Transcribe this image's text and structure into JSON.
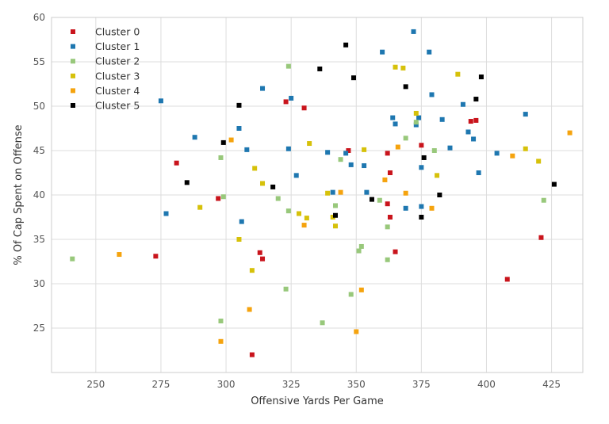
{
  "chart_data": {
    "type": "scatter",
    "xlabel": "Offensive Yards Per Game",
    "ylabel": "% Of Cap Spent on Offense",
    "xlim": [
      233,
      437
    ],
    "ylim": [
      20,
      60
    ],
    "xticks": [
      250,
      275,
      300,
      325,
      350,
      375,
      400,
      425
    ],
    "yticks": [
      25,
      30,
      35,
      40,
      45,
      50,
      55,
      60
    ],
    "grid": true,
    "legend_position": "top-left",
    "series": [
      {
        "name": "Cluster 0",
        "color": "#c9141c",
        "points": [
          [
            281,
            43.6
          ],
          [
            273,
            33.1
          ],
          [
            297,
            39.6
          ],
          [
            310,
            22.0
          ],
          [
            313,
            33.5
          ],
          [
            314,
            32.8
          ],
          [
            323,
            50.5
          ],
          [
            330,
            49.8
          ],
          [
            347,
            45.0
          ],
          [
            362,
            39.0
          ],
          [
            362,
            44.7
          ],
          [
            363,
            42.5
          ],
          [
            363,
            37.5
          ],
          [
            365,
            33.6
          ],
          [
            375,
            45.6
          ],
          [
            394,
            48.3
          ],
          [
            396,
            48.4
          ],
          [
            408,
            30.5
          ],
          [
            421,
            35.2
          ]
        ]
      },
      {
        "name": "Cluster 1",
        "color": "#1e77b0",
        "points": [
          [
            275,
            50.6
          ],
          [
            277,
            37.9
          ],
          [
            288,
            46.5
          ],
          [
            305,
            47.5
          ],
          [
            306,
            37.0
          ],
          [
            308,
            45.1
          ],
          [
            314,
            52.0
          ],
          [
            324,
            45.2
          ],
          [
            325,
            50.9
          ],
          [
            327,
            42.2
          ],
          [
            339,
            44.8
          ],
          [
            341,
            40.3
          ],
          [
            346,
            44.7
          ],
          [
            348,
            43.4
          ],
          [
            353,
            43.3
          ],
          [
            354,
            40.3
          ],
          [
            360,
            56.1
          ],
          [
            364,
            48.7
          ],
          [
            365,
            48.0
          ],
          [
            369,
            38.5
          ],
          [
            372,
            58.4
          ],
          [
            373,
            47.9
          ],
          [
            374,
            48.7
          ],
          [
            375,
            43.1
          ],
          [
            375,
            38.7
          ],
          [
            378,
            56.1
          ],
          [
            379,
            51.3
          ],
          [
            383,
            48.5
          ],
          [
            386,
            45.3
          ],
          [
            391,
            50.2
          ],
          [
            393,
            47.1
          ],
          [
            395,
            46.3
          ],
          [
            397,
            42.5
          ],
          [
            404,
            44.7
          ],
          [
            415,
            49.1
          ]
        ]
      },
      {
        "name": "Cluster 2",
        "color": "#98c87b",
        "points": [
          [
            241,
            32.8
          ],
          [
            298,
            44.2
          ],
          [
            298,
            25.8
          ],
          [
            299,
            39.8
          ],
          [
            320,
            39.6
          ],
          [
            323,
            29.4
          ],
          [
            324,
            38.2
          ],
          [
            324,
            54.5
          ],
          [
            337,
            25.6
          ],
          [
            342,
            38.8
          ],
          [
            344,
            44.0
          ],
          [
            348,
            28.8
          ],
          [
            351,
            33.7
          ],
          [
            352,
            34.2
          ],
          [
            359,
            39.4
          ],
          [
            362,
            36.4
          ],
          [
            362,
            32.7
          ],
          [
            369,
            46.4
          ],
          [
            373,
            48.2
          ],
          [
            380,
            45.0
          ],
          [
            422,
            39.4
          ]
        ]
      },
      {
        "name": "Cluster 3",
        "color": "#d6c10a",
        "points": [
          [
            290,
            38.6
          ],
          [
            305,
            35.0
          ],
          [
            310,
            31.5
          ],
          [
            311,
            43.0
          ],
          [
            314,
            41.3
          ],
          [
            328,
            37.9
          ],
          [
            331,
            37.4
          ],
          [
            332,
            45.8
          ],
          [
            339,
            40.2
          ],
          [
            341,
            37.5
          ],
          [
            342,
            36.5
          ],
          [
            353,
            45.1
          ],
          [
            365,
            54.4
          ],
          [
            368,
            54.3
          ],
          [
            373,
            49.2
          ],
          [
            381,
            42.2
          ],
          [
            389,
            53.6
          ],
          [
            415,
            45.2
          ],
          [
            420,
            43.8
          ]
        ]
      },
      {
        "name": "Cluster 4",
        "color": "#f5a30e",
        "points": [
          [
            259,
            33.3
          ],
          [
            298,
            23.5
          ],
          [
            302,
            46.2
          ],
          [
            309,
            27.1
          ],
          [
            330,
            36.6
          ],
          [
            344,
            40.3
          ],
          [
            350,
            24.6
          ],
          [
            352,
            29.3
          ],
          [
            361,
            41.7
          ],
          [
            366,
            45.4
          ],
          [
            369,
            40.2
          ],
          [
            379,
            38.5
          ],
          [
            410,
            44.4
          ],
          [
            432,
            47.0
          ]
        ]
      },
      {
        "name": "Cluster 5",
        "color": "#000000",
        "points": [
          [
            285,
            41.4
          ],
          [
            299,
            45.9
          ],
          [
            305,
            50.1
          ],
          [
            318,
            40.9
          ],
          [
            336,
            54.2
          ],
          [
            342,
            37.7
          ],
          [
            346,
            56.9
          ],
          [
            349,
            53.2
          ],
          [
            356,
            39.5
          ],
          [
            369,
            52.2
          ],
          [
            375,
            37.5
          ],
          [
            376,
            44.2
          ],
          [
            382,
            40.0
          ],
          [
            396,
            50.8
          ],
          [
            398,
            53.3
          ],
          [
            426,
            41.2
          ]
        ]
      }
    ]
  }
}
